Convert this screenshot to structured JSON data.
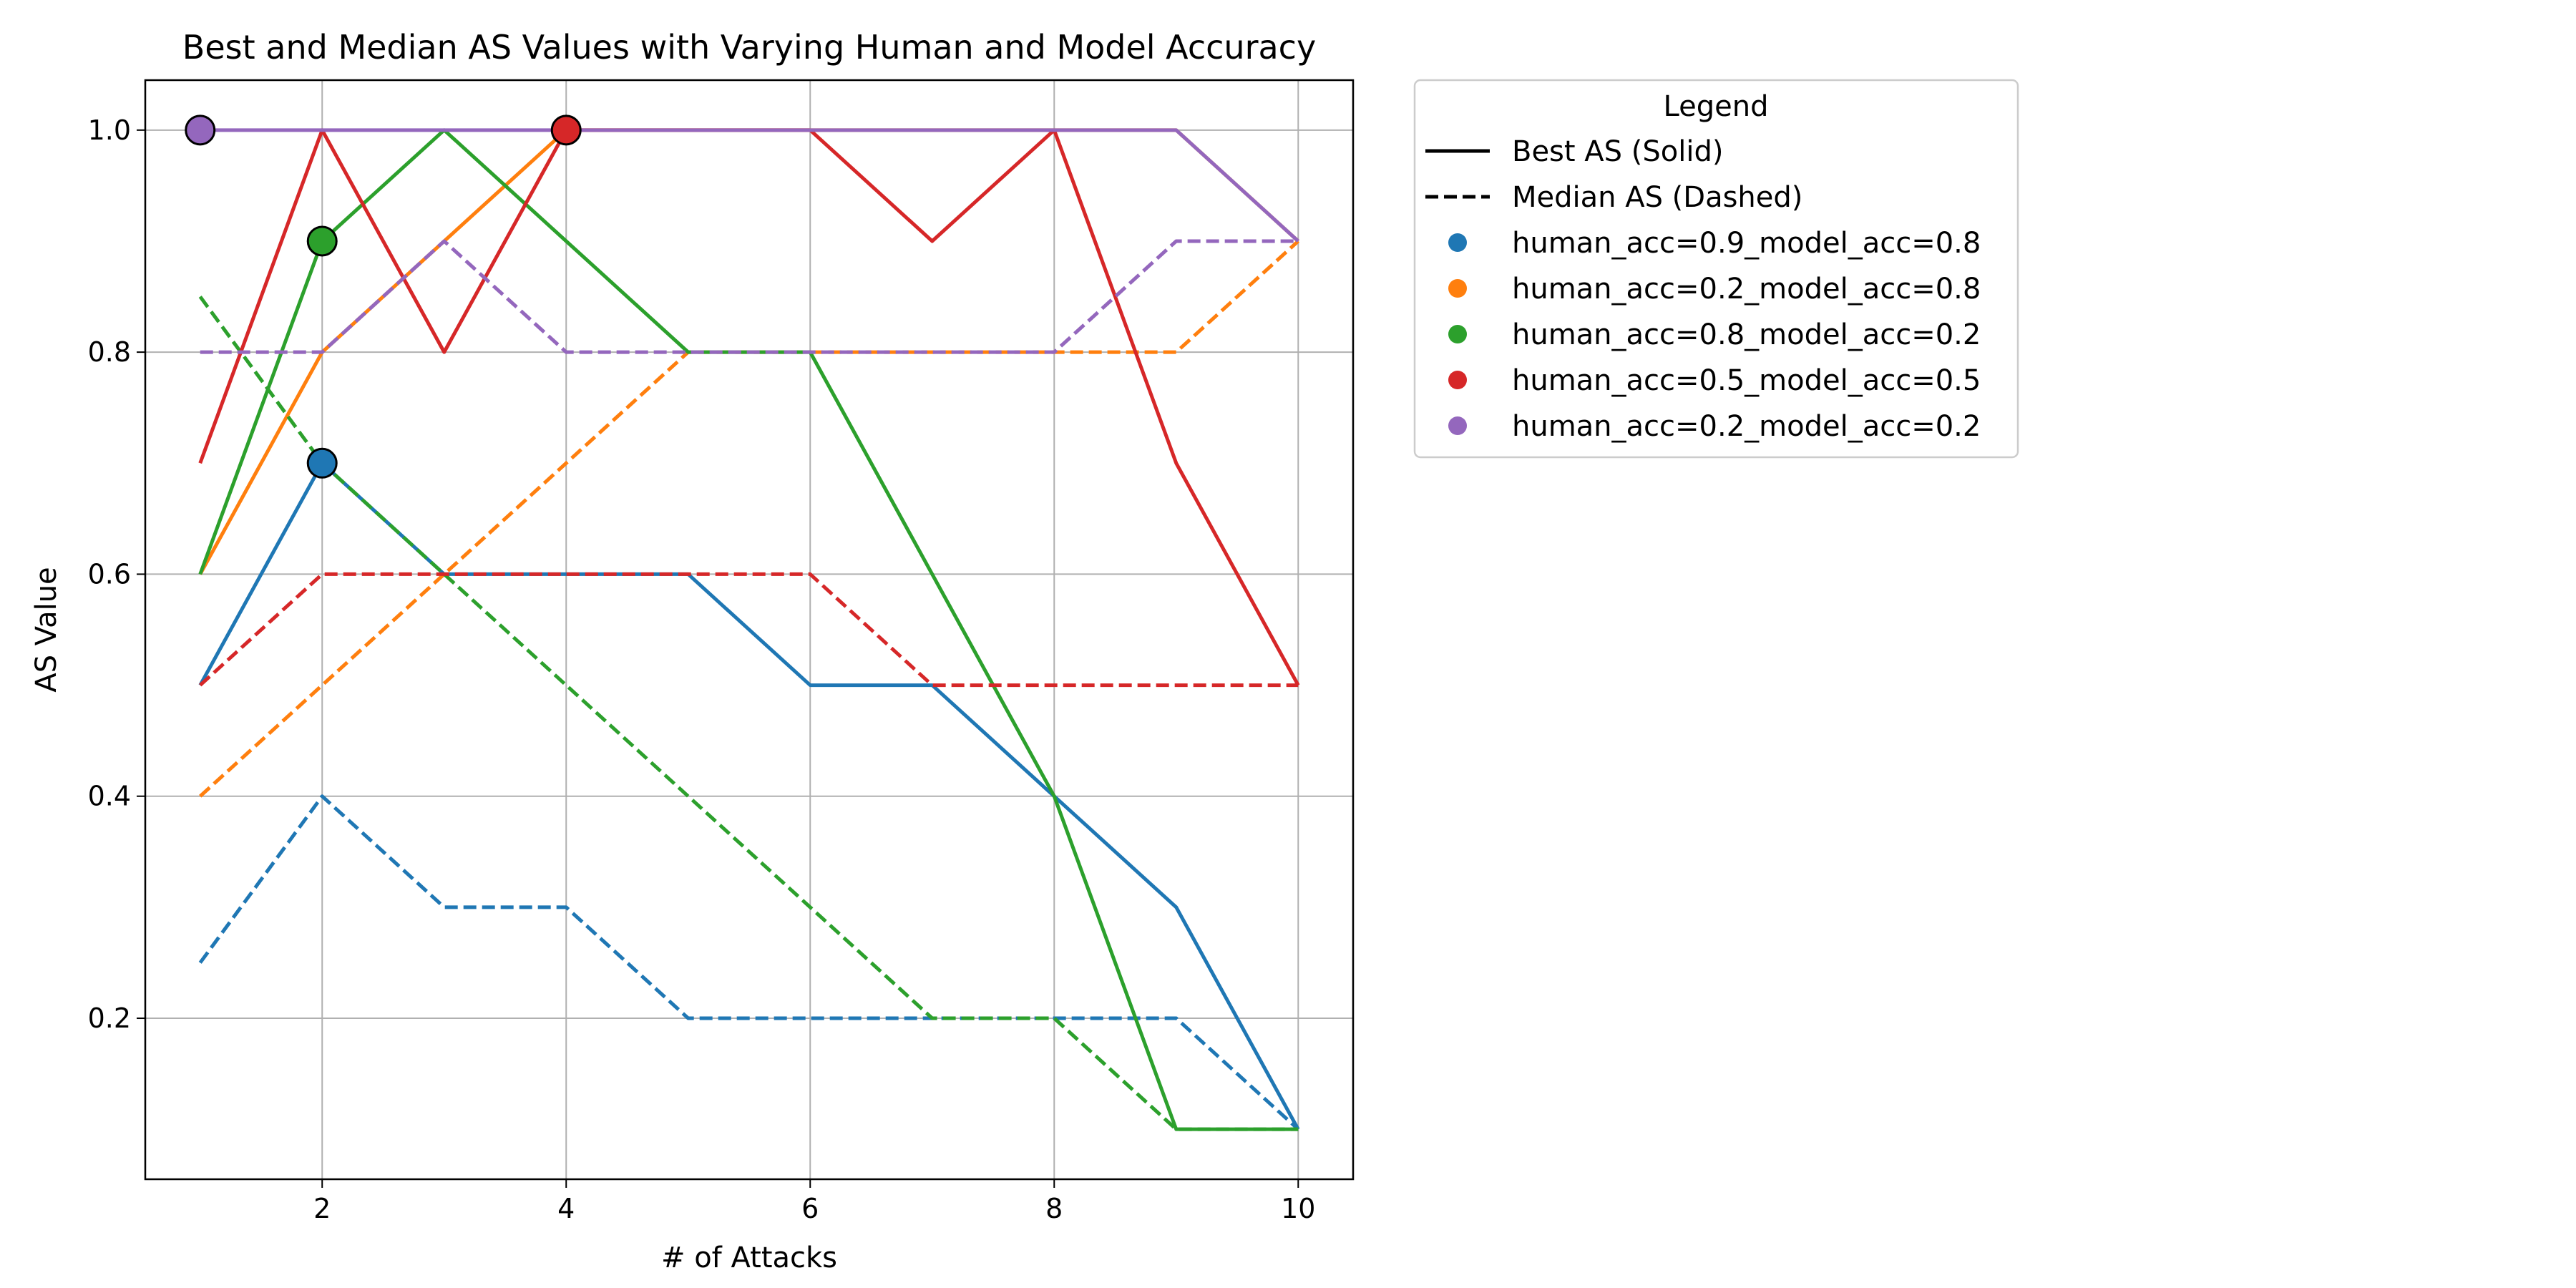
{
  "chart_data": {
    "type": "line",
    "title": "Best and Median AS Values with Varying Human and Model Accuracy",
    "xlabel": "# of Attacks",
    "ylabel": "AS Value",
    "xlim": [
      0.55,
      10.45
    ],
    "ylim": [
      0.055,
      1.045
    ],
    "xticks": [
      2,
      4,
      6,
      8,
      10
    ],
    "yticks": [
      0.2,
      0.4,
      0.6,
      0.8,
      1.0
    ],
    "xtick_labels": [
      "2",
      "4",
      "6",
      "8",
      "10"
    ],
    "ytick_labels": [
      "0.2",
      "0.4",
      "0.6",
      "0.8",
      "1.0"
    ],
    "grid": true,
    "x": [
      1,
      2,
      3,
      4,
      5,
      6,
      7,
      8,
      9,
      10
    ],
    "series": [
      {
        "name": "human_acc=0.9_model_acc=0.8",
        "color": "#1f77b4",
        "best": [
          0.5,
          0.7,
          0.6,
          0.6,
          0.6,
          0.5,
          0.5,
          0.4,
          0.3,
          0.1
        ],
        "median": [
          0.25,
          0.4,
          0.3,
          0.3,
          0.2,
          0.2,
          0.2,
          0.2,
          0.2,
          0.1
        ],
        "marker": {
          "x": 2,
          "y": 0.7
        }
      },
      {
        "name": "human_acc=0.2_model_acc=0.8",
        "color": "#ff7f0e",
        "best": [
          0.6,
          0.8,
          0.9,
          1.0,
          1.0,
          1.0,
          1.0,
          1.0,
          1.0,
          0.9
        ],
        "median": [
          0.4,
          0.5,
          0.6,
          0.7,
          0.8,
          0.8,
          0.8,
          0.8,
          0.8,
          0.9
        ],
        "marker": null
      },
      {
        "name": "human_acc=0.8_model_acc=0.2",
        "color": "#2ca02c",
        "best": [
          0.6,
          0.9,
          1.0,
          0.9,
          0.8,
          0.8,
          0.6,
          0.4,
          0.1,
          0.1
        ],
        "median": [
          0.85,
          0.7,
          0.6,
          0.5,
          0.4,
          0.3,
          0.2,
          0.2,
          0.1,
          0.1
        ],
        "marker": {
          "x": 2,
          "y": 0.9
        }
      },
      {
        "name": "human_acc=0.5_model_acc=0.5",
        "color": "#d62728",
        "best": [
          0.7,
          1.0,
          0.8,
          1.0,
          1.0,
          1.0,
          0.9,
          1.0,
          0.7,
          0.5
        ],
        "median": [
          0.5,
          0.6,
          0.6,
          0.6,
          0.6,
          0.6,
          0.5,
          0.5,
          0.5,
          0.5
        ],
        "marker": {
          "x": 4,
          "y": 1.0
        }
      },
      {
        "name": "human_acc=0.2_model_acc=0.2",
        "color": "#9467bd",
        "best": [
          1.0,
          1.0,
          1.0,
          1.0,
          1.0,
          1.0,
          1.0,
          1.0,
          1.0,
          0.9
        ],
        "median": [
          0.8,
          0.8,
          0.9,
          0.8,
          0.8,
          0.8,
          0.8,
          0.8,
          0.9,
          0.9
        ],
        "marker": {
          "x": 1,
          "y": 1.0
        }
      }
    ],
    "legend": {
      "title": "Legend",
      "position": "outside-right-top",
      "line_entries": [
        {
          "label": "Best AS (Solid)",
          "style": "solid"
        },
        {
          "label": "Median AS (Dashed)",
          "style": "dashed"
        }
      ]
    }
  }
}
